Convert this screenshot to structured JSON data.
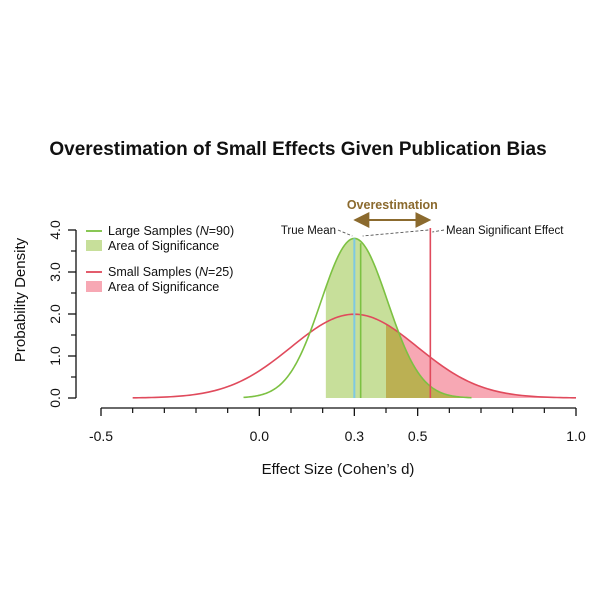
{
  "chart_data": {
    "type": "line",
    "title": "Overestimation of Small Effects Given Publication Bias",
    "xlabel": "Effect Size (Cohen’s d)",
    "ylabel": "Probability Density",
    "xlim": [
      -0.5,
      1.0
    ],
    "ylim": [
      0,
      4.0
    ],
    "x_ticks": [
      {
        "value": -0.5,
        "label": "-0.5"
      },
      {
        "value": 0.0,
        "label": "0.0"
      },
      {
        "value": 0.3,
        "label": "0.3"
      },
      {
        "value": 0.5,
        "label": "0.5"
      },
      {
        "value": 1.0,
        "label": "1.0"
      }
    ],
    "x_minor_ticks": [
      -0.4,
      -0.3,
      -0.2,
      -0.1,
      0.1,
      0.2,
      0.4,
      0.6,
      0.7,
      0.8,
      0.9
    ],
    "y_ticks": [
      {
        "value": 0.0,
        "label": "0.0"
      },
      {
        "value": 1.0,
        "label": "1.0"
      },
      {
        "value": 2.0,
        "label": "2.0"
      },
      {
        "value": 3.0,
        "label": "3.0"
      },
      {
        "value": 4.0,
        "label": "4.0"
      }
    ],
    "y_minor_ticks": [
      0.5,
      1.5,
      2.5,
      3.5
    ],
    "series": [
      {
        "name_prefix": "Large Samples (",
        "name_italic": "N",
        "name_suffix": "=90)",
        "mean": 0.3,
        "sd": 0.105,
        "x_range": [
          -0.05,
          0.67
        ],
        "significance_threshold": 0.21,
        "mean_significant_effect": 0.32,
        "line_color": "#7cc142",
        "fill_color": "#c7df9a",
        "area_label": "Area of Significance"
      },
      {
        "name_prefix": "Small Samples (",
        "name_italic": "N",
        "name_suffix": "=25)",
        "mean": 0.3,
        "sd": 0.2,
        "x_range": [
          -0.4,
          1.0
        ],
        "significance_threshold": 0.4,
        "mean_significant_effect": 0.54,
        "line_color": "#e04a5c",
        "fill_color": "#f7a8b4",
        "area_label": "Area of Significance"
      }
    ],
    "overlap_fill_color": "#b8a846",
    "true_mean": {
      "x": 0.3,
      "label": "True Mean",
      "color": "#7ec8e3"
    },
    "mean_significant_label": "Mean Significant Effect",
    "overestimation": {
      "label": "Overestimation",
      "from": 0.3,
      "to": 0.54,
      "color": "#8b6a2e"
    },
    "legend_position": "top-left",
    "grid": false
  }
}
